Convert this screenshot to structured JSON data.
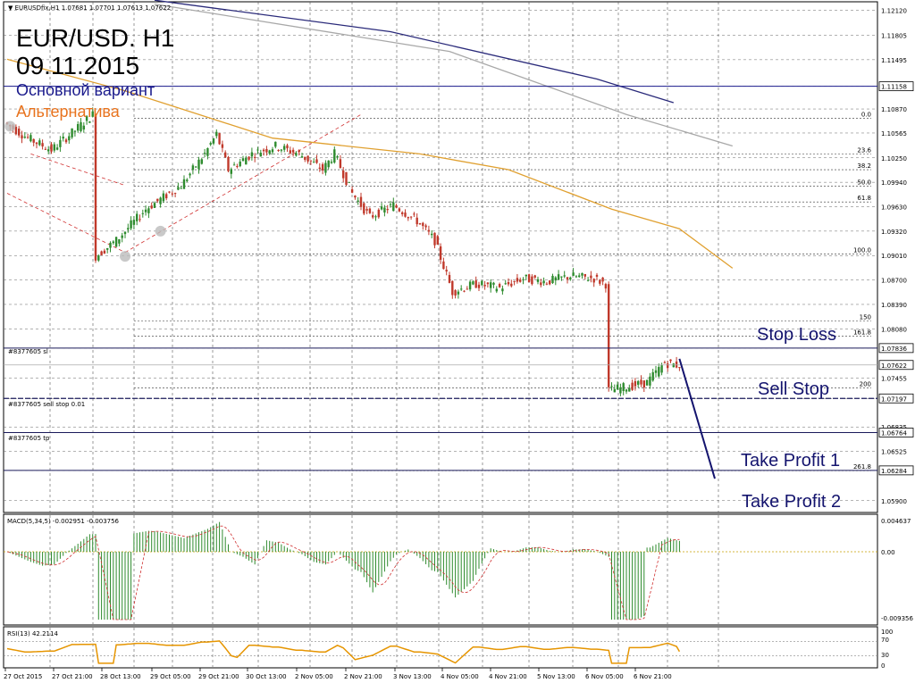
{
  "header": {
    "symbol_line": "▼ EURUSDfix,H1  1.07681 1.07701 1.07613 1.07622",
    "title_line1": "EUR/USD. H1",
    "title_line2": "09.11.2015",
    "main_variant": "Основной вариант",
    "alternative": "Альтернатива"
  },
  "colors": {
    "main_variant": "#1a1a8c",
    "alternative": "#e8731e",
    "annotation": "#14146e",
    "bull_candle": "#2e8b2e",
    "bear_candle": "#c0392b",
    "ma_dark": "#2a2a7a",
    "ma_grey": "#a8a8a8",
    "ma_orange": "#e0a030",
    "rsi": "#e69500",
    "signal": "#d03030"
  },
  "price_panel": {
    "ticks": [
      "1.12120",
      "1.11805",
      "1.11495",
      "1.11158",
      "1.10870",
      "1.10565",
      "1.10250",
      "1.09940",
      "1.09630",
      "1.09320",
      "1.09010",
      "1.08700",
      "1.08390",
      "1.08080",
      "1.07836",
      "1.07622",
      "1.07455",
      "1.07197",
      "1.06835",
      "1.06764",
      "1.06525",
      "1.06284",
      "1.05900"
    ],
    "highlighted_ticks": [
      "1.11158",
      "1.07836",
      "1.07622",
      "1.07197",
      "1.06764",
      "1.06284"
    ],
    "fib_labels": [
      "0.0",
      "23.6",
      "38.2",
      "50.0",
      "61.8",
      "100.0",
      "150",
      "161.8",
      "200",
      "261.8"
    ]
  },
  "orders": {
    "sl": "#8377605 sl",
    "sell_stop": "#8377605 sell stop 0.01",
    "tp": "#8377605 tp"
  },
  "annotations": {
    "stop_loss": "Stop Loss",
    "sell_stop": "Sell Stop",
    "take_profit_1": "Take Profit 1",
    "take_profit_2": "Take Profit 2"
  },
  "macd_panel": {
    "label": "MACD(5,34,5) -0.002951 -0.003756",
    "ticks": [
      "0.004637",
      "0.00",
      "-0.009356"
    ]
  },
  "rsi_panel": {
    "label": "RSI(13) 42.2114",
    "ticks": [
      "100",
      "70",
      "30",
      "0"
    ]
  },
  "x_axis": {
    "labels": [
      "27 Oct 2015",
      "27 Oct 21:00",
      "28 Oct 13:00",
      "29 Oct 05:00",
      "29 Oct 21:00",
      "30 Oct 13:00",
      "2 Nov 05:00",
      "2 Nov 21:00",
      "3 Nov 13:00",
      "4 Nov 05:00",
      "4 Nov 21:00",
      "5 Nov 13:00",
      "6 Nov 05:00",
      "6 Nov 21:00"
    ]
  },
  "chart_data": {
    "type": "candlestick",
    "symbol": "EURUSDfix",
    "timeframe": "H1",
    "last_bar": {
      "open": 1.07681,
      "high": 1.07701,
      "low": 1.07613,
      "close": 1.07622
    },
    "price_range": [
      1.0575,
      1.1223
    ],
    "levels": {
      "sl": 1.07836,
      "bid": 1.07622,
      "sell_stop": 1.07197,
      "tp1": 1.06764,
      "tp2": 1.06284,
      "horizontal": 1.11158
    },
    "fib_levels": [
      {
        "label": "0.0",
        "price": 1.1075
      },
      {
        "label": "23.6",
        "price": 1.103
      },
      {
        "label": "38.2",
        "price": 1.101
      },
      {
        "label": "50.0",
        "price": 1.0989
      },
      {
        "label": "61.8",
        "price": 1.0969
      },
      {
        "label": "100.0",
        "price": 1.0903
      },
      {
        "label": "150",
        "price": 1.0818
      },
      {
        "label": "161.8",
        "price": 1.0799
      },
      {
        "label": "200",
        "price": 1.0733
      },
      {
        "label": "261.8",
        "price": 1.0628
      }
    ],
    "price_path": [
      {
        "bar": 0,
        "price": 1.107
      },
      {
        "bar": 8,
        "price": 1.105
      },
      {
        "bar": 16,
        "price": 1.1035
      },
      {
        "bar": 24,
        "price": 1.106
      },
      {
        "bar": 30,
        "price": 1.108
      },
      {
        "bar": 31,
        "price": 1.09
      },
      {
        "bar": 38,
        "price": 1.092
      },
      {
        "bar": 48,
        "price": 1.096
      },
      {
        "bar": 60,
        "price": 1.099
      },
      {
        "bar": 68,
        "price": 1.103
      },
      {
        "bar": 72,
        "price": 1.1055
      },
      {
        "bar": 76,
        "price": 1.101
      },
      {
        "bar": 84,
        "price": 1.103
      },
      {
        "bar": 92,
        "price": 1.104
      },
      {
        "bar": 100,
        "price": 1.103
      },
      {
        "bar": 108,
        "price": 1.101
      },
      {
        "bar": 112,
        "price": 1.103
      },
      {
        "bar": 118,
        "price": 1.098
      },
      {
        "bar": 124,
        "price": 1.095
      },
      {
        "bar": 132,
        "price": 1.0965
      },
      {
        "bar": 140,
        "price": 1.0945
      },
      {
        "bar": 146,
        "price": 1.092
      },
      {
        "bar": 152,
        "price": 1.0855
      },
      {
        "bar": 160,
        "price": 1.0865
      },
      {
        "bar": 168,
        "price": 1.086
      },
      {
        "bar": 176,
        "price": 1.0872
      },
      {
        "bar": 184,
        "price": 1.0868
      },
      {
        "bar": 192,
        "price": 1.0875
      },
      {
        "bar": 200,
        "price": 1.0872
      },
      {
        "bar": 204,
        "price": 1.0865
      },
      {
        "bar": 205,
        "price": 1.073
      },
      {
        "bar": 212,
        "price": 1.0735
      },
      {
        "bar": 218,
        "price": 1.074
      },
      {
        "bar": 224,
        "price": 1.0765
      },
      {
        "bar": 228,
        "price": 1.0762
      }
    ],
    "moving_averages": [
      {
        "name": "MA slow",
        "points": [
          {
            "bar": 50,
            "price": 1.1225
          },
          {
            "bar": 130,
            "price": 1.1185
          },
          {
            "bar": 200,
            "price": 1.1125
          },
          {
            "bar": 226,
            "price": 1.1095
          }
        ]
      },
      {
        "name": "MA medium",
        "points": [
          {
            "bar": 50,
            "price": 1.122
          },
          {
            "bar": 150,
            "price": 1.116
          },
          {
            "bar": 210,
            "price": 1.108
          },
          {
            "bar": 246,
            "price": 1.104
          }
        ]
      },
      {
        "name": "MA fast",
        "points": [
          {
            "bar": 0,
            "price": 1.115
          },
          {
            "bar": 40,
            "price": 1.111
          },
          {
            "bar": 90,
            "price": 1.105
          },
          {
            "bar": 140,
            "price": 1.103
          },
          {
            "bar": 170,
            "price": 1.101
          },
          {
            "bar": 205,
            "price": 1.096
          },
          {
            "bar": 228,
            "price": 1.0935
          },
          {
            "bar": 246,
            "price": 1.0885
          }
        ]
      }
    ],
    "projection": [
      {
        "bar": 228,
        "price": 1.077
      },
      {
        "bar": 240,
        "price": 1.0618
      }
    ],
    "macd": {
      "ylim": [
        -0.009356,
        0.004637
      ]
    },
    "rsi": {
      "ylim": [
        0,
        100
      ],
      "levels": [
        30,
        70
      ],
      "last": 42.2114
    }
  }
}
